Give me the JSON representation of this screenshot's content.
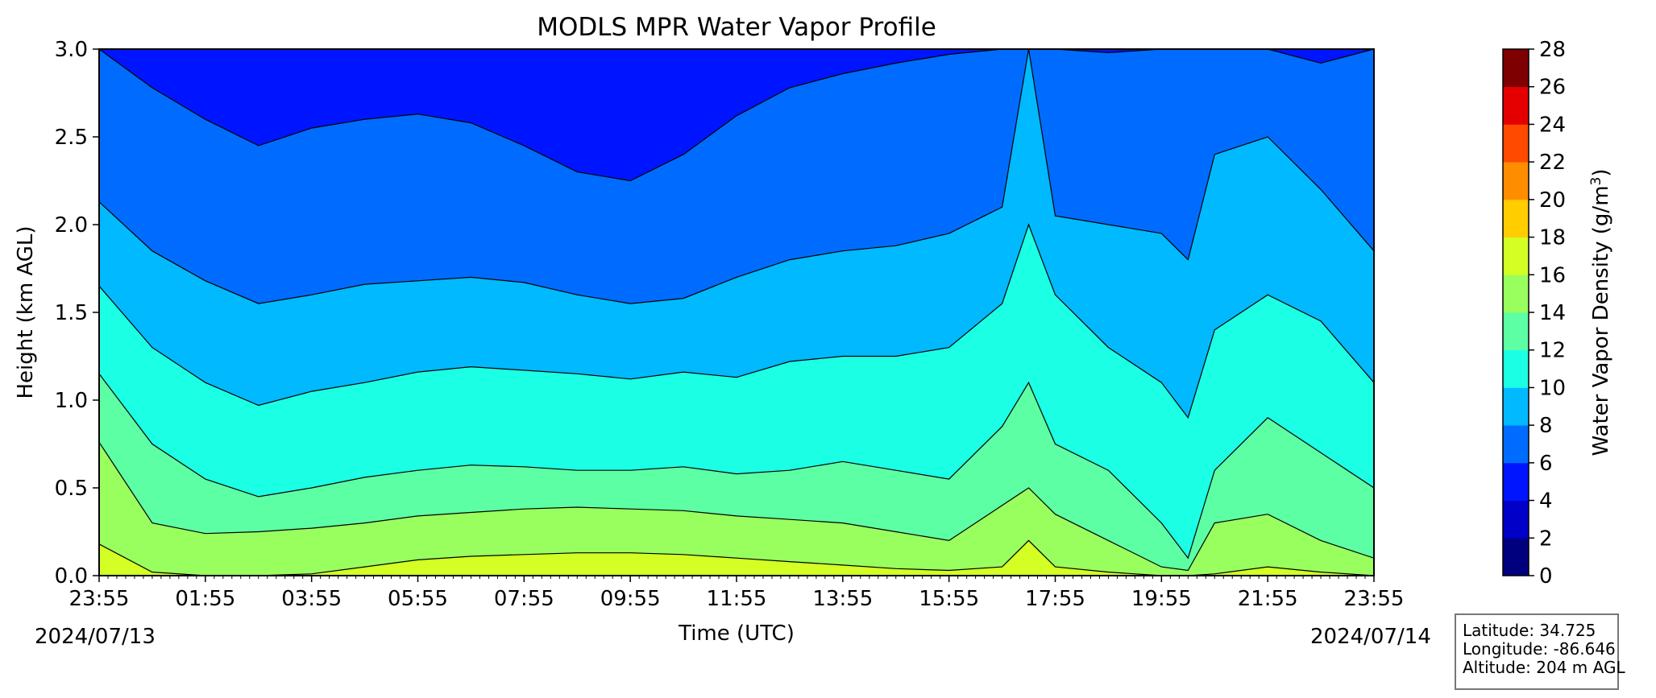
{
  "chart_data": {
    "type": "filled-contour",
    "title": "MODLS MPR Water Vapor Profile",
    "xlabel": "Time (UTC)",
    "ylabel": "Height (km AGL)",
    "x_ticks": [
      "23:55",
      "01:55",
      "03:55",
      "05:55",
      "07:55",
      "09:55",
      "11:55",
      "13:55",
      "15:55",
      "17:55",
      "19:55",
      "21:55",
      "23:55"
    ],
    "start_date": "2024/07/13",
    "end_date": "2024/07/14",
    "ylim": [
      0.0,
      3.0
    ],
    "y_ticks": [
      "0.0",
      "0.5",
      "1.0",
      "1.5",
      "2.0",
      "2.5",
      "3.0"
    ],
    "colorbar": {
      "label": "Water Vapor Density (g/m",
      "label_sup": "3",
      "label_close": ")",
      "levels": [
        0,
        2,
        4,
        6,
        8,
        10,
        12,
        14,
        16,
        18,
        20,
        22,
        24,
        26,
        28
      ],
      "tick_labels": [
        "0",
        "2",
        "4",
        "6",
        "8",
        "10",
        "12",
        "14",
        "16",
        "18",
        "20",
        "22",
        "24",
        "26",
        "28"
      ],
      "colors": [
        "#00007f",
        "#0000c8",
        "#0015ff",
        "#006cff",
        "#00b9ff",
        "#1bffe5",
        "#5dffa4",
        "#99ff5f",
        "#d3ff24",
        "#ffcd00",
        "#ff8d00",
        "#ff4a00",
        "#e40000",
        "#7f0000"
      ]
    },
    "contour_levels_kmAGL": {
      "hours": [
        0,
        1,
        2,
        3,
        4,
        5,
        6,
        7,
        8,
        9,
        10,
        11,
        12,
        13,
        14,
        15,
        16,
        17,
        17.5,
        18,
        19,
        20,
        20.5,
        21,
        22,
        23,
        24
      ],
      "level_18": [
        0.18,
        0.02,
        0.0,
        0.0,
        0.01,
        0.05,
        0.09,
        0.11,
        0.12,
        0.13,
        0.13,
        0.12,
        0.1,
        0.08,
        0.06,
        0.04,
        0.03,
        0.05,
        0.2,
        0.05,
        0.02,
        0.0,
        0.0,
        0.01,
        0.05,
        0.02,
        0.0
      ],
      "level_16": [
        0.76,
        0.3,
        0.24,
        0.25,
        0.27,
        0.3,
        0.34,
        0.36,
        0.38,
        0.39,
        0.38,
        0.37,
        0.34,
        0.32,
        0.3,
        0.25,
        0.2,
        0.4,
        0.5,
        0.35,
        0.2,
        0.05,
        0.03,
        0.3,
        0.35,
        0.2,
        0.1
      ],
      "level_14": [
        1.15,
        0.75,
        0.55,
        0.45,
        0.5,
        0.56,
        0.6,
        0.63,
        0.62,
        0.6,
        0.6,
        0.62,
        0.58,
        0.6,
        0.65,
        0.6,
        0.55,
        0.85,
        1.1,
        0.75,
        0.6,
        0.3,
        0.1,
        0.6,
        0.9,
        0.7,
        0.5
      ],
      "level_12": [
        1.65,
        1.3,
        1.1,
        0.97,
        1.05,
        1.1,
        1.16,
        1.19,
        1.17,
        1.15,
        1.12,
        1.16,
        1.13,
        1.22,
        1.25,
        1.25,
        1.3,
        1.55,
        2.0,
        1.6,
        1.3,
        1.1,
        0.9,
        1.4,
        1.6,
        1.45,
        1.1
      ],
      "level_10": [
        2.13,
        1.85,
        1.68,
        1.55,
        1.6,
        1.66,
        1.68,
        1.7,
        1.67,
        1.6,
        1.55,
        1.58,
        1.7,
        1.8,
        1.85,
        1.88,
        1.95,
        2.1,
        3.0,
        2.05,
        2.0,
        1.95,
        1.8,
        2.4,
        2.5,
        2.2,
        1.85
      ],
      "level_8": [
        3.0,
        2.78,
        2.6,
        2.45,
        2.55,
        2.6,
        2.63,
        2.58,
        2.45,
        2.3,
        2.25,
        2.4,
        2.62,
        2.78,
        2.86,
        2.92,
        2.97,
        3.0,
        3.0,
        3.0,
        2.98,
        3.0,
        3.0,
        3.0,
        3.0,
        2.92,
        3.0
      ]
    }
  },
  "info_box": {
    "latitude": "Latitude: 34.725",
    "longitude": "Longitude: -86.646",
    "altitude": "Altitude: 204 m AGL"
  }
}
